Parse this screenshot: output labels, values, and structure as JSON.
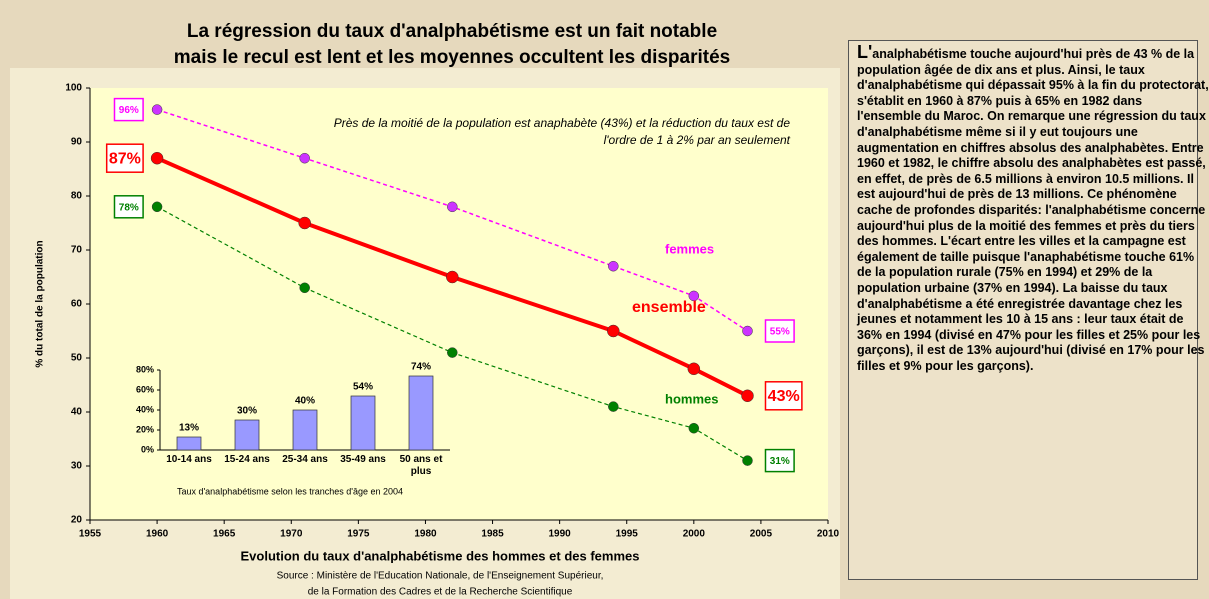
{
  "chart_data": [
    {
      "type": "line",
      "title": [
        "La régression du taux d'analphabétisme est un fait notable",
        "mais le recul est lent et les moyennes occultent les disparités"
      ],
      "annotation": "Près de la moitié de la population est anaphabète (43%) et la réduction du taux est de l'ordre de 1 à 2% par an seulement",
      "y_label": "% du total de la population",
      "x_label": "Evolution du taux d'analphabétisme des hommes et des femmes",
      "source": [
        "Source : Ministère de l'Education Nationale, de l'Enseignement Supérieur,",
        "de la Formation des Cadres et de la Recherche Scientifique"
      ],
      "x": [
        1960,
        1971,
        1982,
        1994,
        2000,
        2004
      ],
      "xlim": [
        1955,
        2010
      ],
      "xticks": [
        1955,
        1960,
        1965,
        1970,
        1975,
        1980,
        1985,
        1990,
        1995,
        2000,
        2005,
        2010
      ],
      "ylim": [
        20,
        100
      ],
      "yticks": [
        20,
        30,
        40,
        50,
        60,
        70,
        80,
        90,
        100
      ],
      "series": [
        {
          "name": "femmes",
          "color": "#ff00ff",
          "values": [
            96,
            87,
            78,
            67,
            61.5,
            55
          ],
          "value_labels": [
            "96%",
            null,
            null,
            null,
            null,
            "55%"
          ]
        },
        {
          "name": "ensemble",
          "color": "#ff0000",
          "values": [
            87,
            75,
            65,
            55,
            48,
            43
          ],
          "value_labels": [
            "87%",
            null,
            null,
            null,
            null,
            "43%"
          ]
        },
        {
          "name": "hommes",
          "color": "#008000",
          "values": [
            78,
            63,
            51,
            41,
            37,
            31
          ],
          "value_labels": [
            "78%",
            null,
            null,
            null,
            null,
            "31%"
          ]
        }
      ]
    },
    {
      "type": "bar",
      "caption": "Taux d'analphabétisme selon les tranches d'âge en 2004",
      "categories": [
        "10-14 ans",
        "15-24 ans",
        "25-34 ans",
        "35-49 ans",
        "50 ans et plus"
      ],
      "values": [
        13,
        30,
        40,
        54,
        74
      ],
      "value_labels": [
        "13%",
        "30%",
        "40%",
        "54%",
        "74%"
      ],
      "color": "#9999ff",
      "ylim": [
        0,
        80
      ],
      "yticks": [
        {
          "value": 0,
          "label": "0%"
        },
        {
          "value": 20,
          "label": "20%"
        },
        {
          "value": 40,
          "label": "40%"
        },
        {
          "value": 60,
          "label": "60%"
        },
        {
          "value": 80,
          "label": "80%"
        }
      ]
    }
  ],
  "text_panel": {
    "paragraph": "L'analphabétisme touche aujourd'hui près de 43 % de la population âgée de dix ans et plus. Ainsi, le taux d'analphabétisme qui dépassait 95% à la fin du protectorat, s'établit en 1960 à 87% puis à 65% en 1982 dans l'ensemble du Maroc. On remarque une régression du taux d'analphabétisme même si il y eut toujours une augmentation en chiffres absolus des analphabètes. Entre 1960 et 1982, le chiffre absolu des analphabètes est passé, en effet, de près de 6.5 millions à environ 10.5 millions. Il est aujourd'hui de près de 13 millions. Ce phénomène cache de profondes disparités: l'analphabétisme concerne aujourd'hui plus de la moitié des femmes et près du tiers des hommes. L'écart entre les villes et la campagne est également de taille puisque l'anaphabétisme touche 61% de la population rurale (75% en 1994) et 29% de la population urbaine (37% en 1994). La baisse du taux d'analphabétisme a été enregistrée davantage chez les jeunes et notamment les 10 à 15 ans : leur taux était de 36% en 1994 (divisé en 47% pour les filles et 25% pour les garçons), il est de 13% aujourd'hui (divisé en 17%  pour les filles et 9% pour les garçons)."
  }
}
